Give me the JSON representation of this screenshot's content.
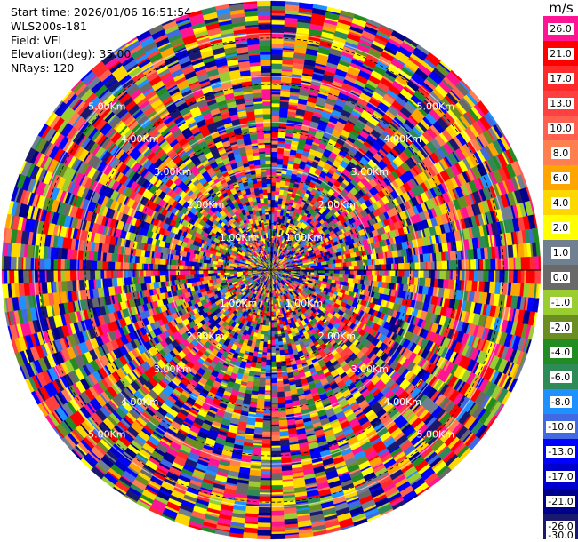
{
  "header": {
    "start_time": "Start time: 2026/01/06 16:51:54",
    "instrument": "WLS200s-181",
    "field": "Field: VEL",
    "elevation": "Elevation(deg): 35.00",
    "nrays": "NRays: 120"
  },
  "colorbar": {
    "unit": "m/s",
    "ticks": [
      "26.0",
      "21.0",
      "17.0",
      "13.0",
      "10.0",
      "8.0",
      "6.0",
      "4.0",
      "2.0",
      "1.0",
      "0.0",
      "-1.0",
      "-2.0",
      "-4.0",
      "-6.0",
      "-8.0",
      "-10.0",
      "-13.0",
      "-17.0",
      "-21.0",
      "-26.0",
      "-30.0"
    ],
    "colors": [
      "#ff1493",
      "#ff0000",
      "#ff2a2a",
      "#ff4040",
      "#ff6050",
      "#ff7f50",
      "#ffa500",
      "#ffd700",
      "#ffff00",
      "#708090",
      "#696969",
      "#9acd32",
      "#6b8e23",
      "#228b22",
      "#2e8b57",
      "#1e90ff",
      "#4169e1",
      "#0000ff",
      "#0000cd",
      "#00008b",
      "#191970"
    ]
  },
  "range_labels": [
    "1.00Km",
    "2.00Km",
    "3.00Km",
    "4.00Km",
    "5.00Km"
  ],
  "chart_data": {
    "type": "ppi",
    "field": "VEL",
    "units": "m/s",
    "n_rays": 120,
    "elevation_deg": 35.0,
    "range_rings_km": [
      1,
      2,
      3,
      4,
      5
    ],
    "max_range_km": 5.8,
    "value_range": [
      -30,
      30
    ]
  }
}
